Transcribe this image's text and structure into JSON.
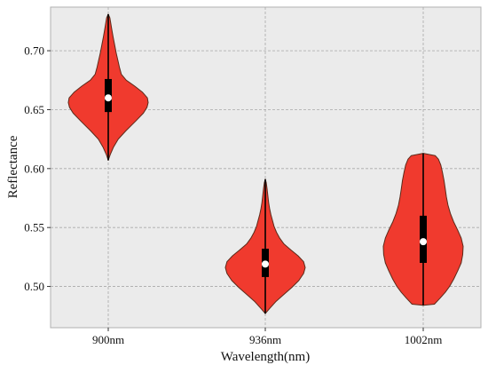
{
  "chart_data": {
    "type": "violin",
    "title": "",
    "xlabel": "Wavelength(nm)",
    "ylabel": "Reflectance",
    "categories": [
      "900nm",
      "936nm",
      "1002nm"
    ],
    "ylim": [
      0.465,
      0.737
    ],
    "yticks": [
      0.5,
      0.55,
      0.6,
      0.65,
      0.7
    ],
    "ytick_labels": [
      "0.50",
      "0.55",
      "0.60",
      "0.65",
      "0.70"
    ],
    "grid": true,
    "colors": {
      "plot_background": "#ebebeb",
      "violin_fill": "#f03a2e",
      "violin_edge": "#5a2a1a",
      "box": "#000000",
      "median_marker": "#ffffff",
      "grid": "#a9a9a9"
    },
    "series": [
      {
        "category": "900nm",
        "min": 0.607,
        "q1": 0.648,
        "median": 0.66,
        "q3": 0.676,
        "max": 0.731,
        "density_profile": [
          [
            0.607,
            0.0
          ],
          [
            0.612,
            0.05
          ],
          [
            0.618,
            0.13
          ],
          [
            0.625,
            0.25
          ],
          [
            0.632,
            0.44
          ],
          [
            0.64,
            0.68
          ],
          [
            0.647,
            0.88
          ],
          [
            0.652,
            0.97
          ],
          [
            0.656,
            1.0
          ],
          [
            0.66,
            0.98
          ],
          [
            0.665,
            0.85
          ],
          [
            0.67,
            0.66
          ],
          [
            0.675,
            0.45
          ],
          [
            0.68,
            0.33
          ],
          [
            0.686,
            0.28
          ],
          [
            0.692,
            0.24
          ],
          [
            0.698,
            0.2
          ],
          [
            0.705,
            0.16
          ],
          [
            0.712,
            0.12
          ],
          [
            0.718,
            0.09
          ],
          [
            0.724,
            0.06
          ],
          [
            0.728,
            0.04
          ],
          [
            0.731,
            0.0
          ]
        ]
      },
      {
        "category": "936nm",
        "min": 0.477,
        "q1": 0.508,
        "median": 0.519,
        "q3": 0.532,
        "max": 0.591,
        "density_profile": [
          [
            0.477,
            0.0
          ],
          [
            0.481,
            0.1
          ],
          [
            0.487,
            0.26
          ],
          [
            0.493,
            0.46
          ],
          [
            0.499,
            0.66
          ],
          [
            0.505,
            0.84
          ],
          [
            0.511,
            0.96
          ],
          [
            0.516,
            1.0
          ],
          [
            0.521,
            0.96
          ],
          [
            0.526,
            0.82
          ],
          [
            0.531,
            0.64
          ],
          [
            0.536,
            0.47
          ],
          [
            0.541,
            0.36
          ],
          [
            0.546,
            0.28
          ],
          [
            0.551,
            0.22
          ],
          [
            0.556,
            0.18
          ],
          [
            0.561,
            0.14
          ],
          [
            0.566,
            0.11
          ],
          [
            0.571,
            0.085
          ],
          [
            0.577,
            0.065
          ],
          [
            0.583,
            0.045
          ],
          [
            0.588,
            0.025
          ],
          [
            0.591,
            0.0
          ]
        ]
      },
      {
        "category": "1002nm",
        "min": 0.484,
        "q1": 0.52,
        "median": 0.538,
        "q3": 0.56,
        "max": 0.613,
        "density_profile": [
          [
            0.484,
            0.0
          ],
          [
            0.485,
            0.28
          ],
          [
            0.49,
            0.42
          ],
          [
            0.495,
            0.55
          ],
          [
            0.5,
            0.66
          ],
          [
            0.506,
            0.76
          ],
          [
            0.513,
            0.86
          ],
          [
            0.52,
            0.95
          ],
          [
            0.527,
            0.99
          ],
          [
            0.534,
            1.0
          ],
          [
            0.541,
            0.95
          ],
          [
            0.548,
            0.86
          ],
          [
            0.555,
            0.76
          ],
          [
            0.562,
            0.68
          ],
          [
            0.569,
            0.62
          ],
          [
            0.576,
            0.58
          ],
          [
            0.583,
            0.55
          ],
          [
            0.59,
            0.52
          ],
          [
            0.597,
            0.48
          ],
          [
            0.603,
            0.44
          ],
          [
            0.608,
            0.38
          ],
          [
            0.611,
            0.3
          ],
          [
            0.613,
            0.0
          ]
        ]
      }
    ]
  }
}
